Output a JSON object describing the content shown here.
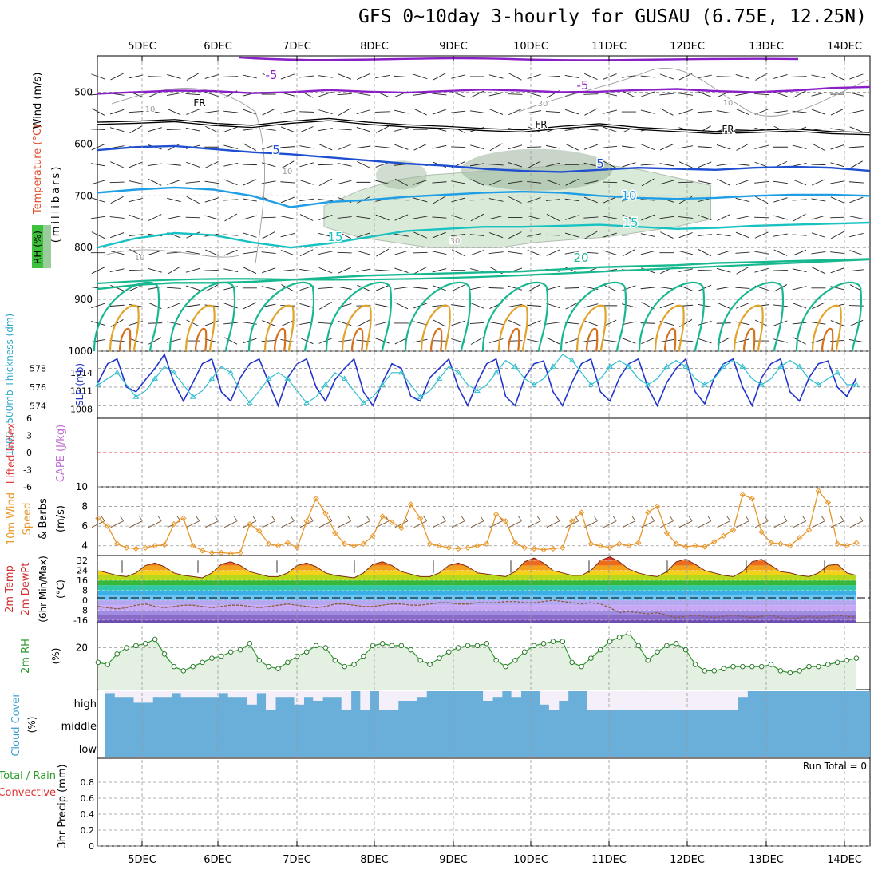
{
  "page": {
    "title": "GFS 0~10day 3-hourly for GUSAU (6.75E, 12.25N)"
  },
  "colors": {
    "grid": "#999999",
    "temp_neg": "#8a1fc7",
    "freezing": "#000000",
    "temp_5": "#1f4fd1",
    "temp_10": "#1f9ee6",
    "temp_15": "#19c2c2",
    "temp_20": "#17b88f",
    "temp_25": "#e2a32b",
    "temp_30": "#d5711c",
    "temp_35": "#c83a1a",
    "rh_fill": "#d6e8d4",
    "rh_dark": "#9bb39a",
    "thickness": "#2233cc",
    "slp": "#2fbfcf",
    "wind10": "#e8962a",
    "rh2m": "#2a9a2a",
    "rh2m_fill": "#e4f1e2",
    "cloud": "#6aafda",
    "cloud_clear": "#f4eff8",
    "lifted_zero": "#e04040"
  },
  "chart_data": [
    {
      "type": "line",
      "name": "upper-air cross-section",
      "x": [
        "5DEC",
        "6DEC",
        "7DEC",
        "8DEC",
        "9DEC",
        "10DEC",
        "11DEC",
        "12DEC",
        "13DEC",
        "14DEC"
      ],
      "ylabel": "Wind (m/s)",
      "ylabels_side": [
        "Temperature (°C)",
        "RH (%)",
        "(millibars)"
      ],
      "yticks": [
        "500",
        "600",
        "700",
        "800",
        "900",
        "1000"
      ],
      "ylim": [
        1000,
        400
      ],
      "rh_legend": "RH (%)",
      "contour_labels": [
        {
          "text": "-5",
          "color": "temp_neg"
        },
        {
          "text": "-5",
          "color": "temp_neg"
        },
        {
          "text": "FR",
          "color": "freezing"
        },
        {
          "text": "FR",
          "color": "freezing"
        },
        {
          "text": "FR",
          "color": "freezing"
        },
        {
          "text": "5",
          "color": "temp_5"
        },
        {
          "text": "5",
          "color": "temp_5"
        },
        {
          "text": "10",
          "color": "temp_10"
        },
        {
          "text": "15",
          "color": "temp_15"
        },
        {
          "text": "15",
          "color": "temp_15"
        },
        {
          "text": "20",
          "color": "temp_20"
        },
        {
          "text": "10",
          "color": "grid"
        },
        {
          "text": "10",
          "color": "grid"
        },
        {
          "text": "10",
          "color": "grid"
        },
        {
          "text": "30",
          "color": "grid"
        },
        {
          "text": "30",
          "color": "grid"
        },
        {
          "text": "10",
          "color": "grid"
        }
      ],
      "isotherms_mb": [
        {
          "temp": "-5",
          "color": "temp_neg",
          "p": [
            503,
            500,
            497,
            498,
            502,
            500,
            496,
            499,
            501,
            498,
            495,
            497,
            500,
            499,
            496,
            494,
            498,
            500,
            497,
            492,
            490
          ]
        },
        {
          "temp": "FR",
          "color": "freezing",
          "p": [
            560,
            558,
            555,
            562,
            566,
            558,
            553,
            560,
            565,
            568,
            572,
            575,
            568,
            563,
            570,
            574,
            578,
            576,
            573,
            578,
            580
          ]
        },
        {
          "temp": "5",
          "color": "temp_5",
          "p": [
            612,
            606,
            604,
            610,
            616,
            620,
            626,
            632,
            638,
            642,
            648,
            652,
            654,
            650,
            646,
            648,
            650,
            646,
            644,
            646,
            652
          ]
        },
        {
          "temp": "10",
          "color": "temp_10",
          "p": [
            694,
            688,
            684,
            688,
            700,
            722,
            712,
            708,
            702,
            698,
            694,
            692,
            694,
            700,
            704,
            706,
            704,
            700,
            698,
            698,
            700
          ]
        },
        {
          "temp": "15",
          "color": "temp_15",
          "p": [
            800,
            782,
            772,
            776,
            790,
            800,
            792,
            780,
            768,
            764,
            760,
            760,
            758,
            756,
            760,
            764,
            762,
            758,
            756,
            754,
            752
          ]
        },
        {
          "temp": "20",
          "color": "temp_20",
          "p": [
            880,
            872,
            868,
            868,
            866,
            862,
            858,
            854,
            852,
            850,
            848,
            846,
            842,
            838,
            836,
            834,
            830,
            828,
            826,
            824,
            822
          ]
        }
      ],
      "rh_region_mb": {
        "x_range": [
          2.4,
          7.5
        ],
        "p_top": [
          720,
          690,
          670,
          660,
          655,
          650,
          645,
          640,
          640,
          650,
          665,
          680
        ],
        "p_bot": [
          760,
          780,
          790,
          800,
          800,
          800,
          790,
          785,
          780,
          770,
          760,
          745
        ]
      }
    },
    {
      "type": "line",
      "name": "thickness & slp",
      "ylabel": "1000~500mb Thickness (dm)",
      "ylabel_right": "SLP (mb)",
      "yticks_left": [
        "578",
        "576",
        "574"
      ],
      "yticks_right": [
        "1014",
        "1011",
        "1008"
      ],
      "ylim_left": [
        573,
        579.5
      ],
      "ylim_right": [
        1007,
        1017
      ],
      "series": [
        {
          "name": "Thickness",
          "color": "thickness",
          "values": [
            576.5,
            578.5,
            579,
            576,
            575.5,
            576.8,
            578,
            579.5,
            576.5,
            574.5,
            576.5,
            578.5,
            579,
            575.5,
            574.5,
            577,
            578.5,
            579,
            576.5,
            574,
            577,
            578.5,
            579,
            576,
            574.5,
            576.8,
            578,
            579,
            575.5,
            574,
            576.5,
            578.5,
            578,
            575,
            574.5,
            577,
            578,
            579,
            576,
            574,
            576.5,
            578.5,
            579,
            575,
            574,
            577,
            578.5,
            578.8,
            575.5,
            574,
            576.5,
            578.5,
            579,
            575.5,
            574.5,
            577,
            578.5,
            579,
            576,
            574,
            576.5,
            578,
            579,
            575.5,
            574.2,
            577,
            578.5,
            579,
            576,
            574,
            577,
            578.5,
            579,
            575.5,
            574.5,
            577,
            578.5,
            578.8,
            576,
            575,
            577
          ]
        },
        {
          "name": "SLP",
          "color": "slp",
          "values": [
            1012,
            1013,
            1014,
            1012,
            1010,
            1011,
            1013,
            1015,
            1014,
            1012,
            1010,
            1011,
            1013,
            1015,
            1014,
            1011,
            1009,
            1011,
            1013,
            1014,
            1013,
            1011,
            1009,
            1010,
            1012,
            1014,
            1013,
            1011,
            1009,
            1010,
            1012,
            1014,
            1014,
            1012,
            1010,
            1011,
            1013,
            1015,
            1014,
            1012,
            1011,
            1012,
            1014,
            1016,
            1015,
            1013,
            1012,
            1013,
            1015,
            1017,
            1016,
            1014,
            1012,
            1013,
            1015,
            1016,
            1015,
            1013,
            1012,
            1013,
            1015,
            1016,
            1015,
            1013,
            1012,
            1013,
            1015,
            1016,
            1015,
            1013,
            1012,
            1013,
            1015,
            1016,
            1015,
            1013,
            1012,
            1013,
            1014,
            1012,
            1012
          ]
        }
      ]
    },
    {
      "type": "line",
      "name": "stability",
      "ylabel_left": "Lifted Index",
      "ylabel_right": "CAPE (J/kg)",
      "yticks": [
        "6",
        "3",
        "0",
        "-3",
        "-6"
      ],
      "ylim": [
        -6,
        6
      ],
      "series": [
        {
          "name": "Lifted Index",
          "color": "lifted_zero",
          "values": [
            0
          ]
        }
      ]
    },
    {
      "type": "line",
      "name": "10m wind",
      "ylabel": "10m Wind Speed & Barbs (m/s)",
      "yticks": [
        "10",
        "8",
        "6",
        "4"
      ],
      "ylim": [
        3,
        10
      ],
      "series": [
        {
          "name": "10m Wind Speed",
          "color": "wind10",
          "values": [
            6.8,
            6.0,
            4.2,
            3.8,
            3.7,
            3.8,
            4.0,
            4.1,
            6.2,
            6.8,
            4.0,
            3.5,
            3.3,
            3.3,
            3.2,
            3.3,
            6.2,
            5.5,
            4.2,
            4.0,
            4.3,
            3.8,
            6.5,
            8.8,
            7.3,
            5.3,
            4.2,
            4.0,
            4.2,
            5.0,
            7.0,
            6.4,
            5.8,
            8.2,
            6.8,
            4.2,
            4.0,
            3.8,
            3.7,
            3.8,
            4.0,
            4.2,
            7.2,
            6.5,
            4.3,
            3.8,
            3.7,
            3.6,
            3.7,
            3.8,
            6.5,
            7.4,
            4.2,
            4.0,
            3.8,
            4.2,
            4.0,
            4.3,
            7.4,
            8.0,
            5.3,
            4.2,
            3.9,
            4.0,
            3.9,
            4.4,
            5.0,
            5.6,
            9.2,
            8.8,
            5.4,
            4.3,
            4.2,
            4.0,
            4.8,
            5.6,
            9.6,
            8.4,
            4.2,
            4.0,
            4.3
          ]
        }
      ]
    },
    {
      "type": "area",
      "name": "2m temperature",
      "ylabel": "2m Temp 2m DewPt (6hr Min/Max) (°C)",
      "yticks": [
        "32",
        "24",
        "16",
        "8",
        "0",
        "-8",
        "-16"
      ],
      "ylim": [
        -18,
        36
      ],
      "series": [
        {
          "name": "2m Temp",
          "values": [
            24,
            22,
            20,
            19,
            22,
            28,
            30,
            27,
            22,
            20,
            19,
            18,
            22,
            29,
            31,
            28,
            23,
            21,
            19,
            19,
            22,
            28,
            30,
            27,
            22,
            20,
            19,
            18,
            22,
            29,
            31,
            28,
            23,
            21,
            19,
            19,
            22,
            28,
            30,
            27,
            22,
            21,
            20,
            19,
            23,
            31,
            34,
            30,
            24,
            22,
            20,
            20,
            24,
            32,
            35,
            31,
            25,
            22,
            20,
            19,
            23,
            31,
            33,
            29,
            24,
            22,
            20,
            19,
            23,
            31,
            33,
            28,
            23,
            22,
            20,
            19,
            22,
            28,
            29,
            22,
            20
          ]
        },
        {
          "name": "2m DewPt",
          "values": [
            -5,
            -6,
            -7,
            -6,
            -4,
            -3,
            -5,
            -6,
            -5,
            -4,
            -4,
            -5,
            -6,
            -5,
            -4,
            -4,
            -5,
            -6,
            -5,
            -4,
            -3,
            -4,
            -5,
            -6,
            -5,
            -3,
            -3,
            -4,
            -5,
            -5,
            -4,
            -3,
            -3,
            -4,
            -4,
            -3,
            -2,
            -2,
            -3,
            -3,
            -2,
            -2,
            -2,
            -1,
            -1,
            -2,
            -2,
            -1,
            0,
            -1,
            -2,
            -3,
            -2,
            -3,
            -6,
            -10,
            -9,
            -10,
            -11,
            -10,
            -12,
            -14,
            -13,
            -12,
            -13,
            -14,
            -13,
            -12,
            -13,
            -14,
            -13,
            -12,
            -14,
            -15,
            -14,
            -13,
            -14,
            -13,
            -12,
            -13,
            -14
          ]
        }
      ]
    },
    {
      "type": "area",
      "name": "2m rh",
      "ylabel": "2m RH (%)",
      "yticks": [
        "20"
      ],
      "ylim": [
        0,
        32
      ],
      "series": [
        {
          "name": "2m RH",
          "color": "rh2m",
          "values": [
            13,
            12,
            17,
            20,
            21,
            22,
            24,
            17,
            11,
            9,
            11,
            13,
            15,
            16,
            18,
            19,
            22,
            14,
            11,
            10,
            13,
            16,
            18,
            21,
            20,
            14,
            11,
            12,
            16,
            21,
            22,
            21,
            21,
            19,
            14,
            12,
            15,
            18,
            20,
            21,
            21,
            22,
            14,
            11,
            14,
            18,
            21,
            22,
            23,
            23,
            13,
            11,
            15,
            19,
            23,
            25,
            27,
            21,
            14,
            18,
            21,
            22,
            19,
            12,
            9,
            9,
            10,
            11,
            11,
            11,
            11,
            12,
            9,
            8,
            9,
            11,
            11,
            12,
            13,
            14,
            15
          ]
        }
      ]
    },
    {
      "type": "heatmap",
      "name": "cloud cover",
      "ylabel": "Cloud Cover (%)",
      "levels": [
        "high",
        "middle",
        "low"
      ],
      "high_clear_fraction": [
        0.1,
        0.3,
        0.3,
        0.6,
        0.6,
        0.3,
        0.3,
        0.1,
        0.3,
        0.3,
        0.3,
        0.3,
        0.1,
        0.3,
        0.3,
        0.7,
        0.1,
        1,
        0.3,
        0.3,
        0.7,
        0.3,
        0.5,
        0.3,
        0.3,
        1,
        0,
        1,
        0,
        1,
        1,
        0.5,
        0.5,
        0.3,
        0,
        0,
        0,
        0,
        0,
        0,
        0.5,
        0.3,
        0,
        0.3,
        0,
        0,
        0.7,
        1,
        0.5,
        0,
        0,
        1,
        1,
        1,
        1,
        1,
        1,
        1,
        1,
        1,
        1,
        1,
        1,
        1,
        1,
        1,
        1,
        0.3,
        0,
        0,
        0,
        0,
        0,
        0,
        0,
        0,
        0,
        0,
        0,
        0,
        0
      ]
    },
    {
      "type": "bar",
      "name": "3hr precip",
      "ylabel": "3hr Precip (mm)",
      "ylabel_left_1": "Total / Rain",
      "ylabel_left_2": "Convective",
      "yticks": [
        "0.8",
        "0.6",
        "0.4",
        "0.2",
        "0"
      ],
      "ylim": [
        0,
        1
      ],
      "run_total": "Run Total = 0",
      "values": []
    }
  ]
}
